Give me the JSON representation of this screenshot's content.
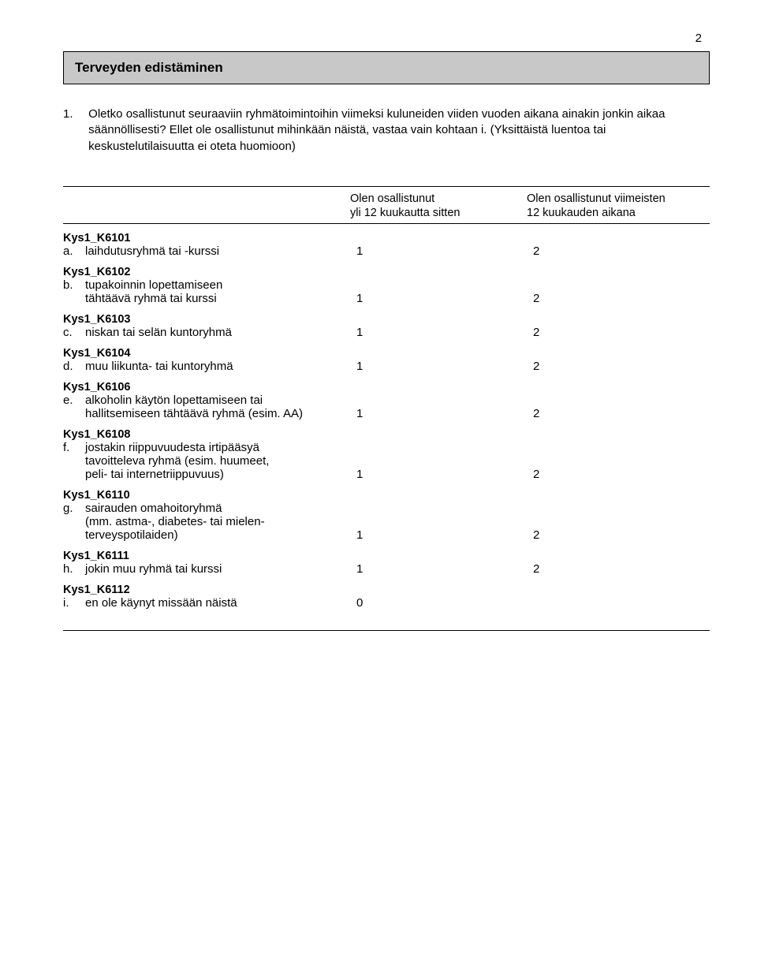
{
  "page_number": "2",
  "section_title": "Terveyden edistäminen",
  "question": {
    "number": "1.",
    "text": "Oletko osallistunut seuraaviin ryhmätoimintoihin viimeksi kuluneiden viiden vuoden aikana ainakin jonkin aikaa säännöllisesti? Ellet ole osallistunut mihinkään näistä, vastaa vain kohtaan i. (Yksittäistä luentoa tai keskustelutilaisuutta ei oteta huomioon)"
  },
  "columns": {
    "col1_line1": "Olen osallistunut",
    "col1_line2": "yli 12 kuukautta sitten",
    "col2_line1": "Olen osallistunut viimeisten",
    "col2_line2": "12 kuukauden aikana"
  },
  "items": [
    {
      "code": "Kys1_K6101",
      "letter": "a.",
      "label": "laihdutusryhmä tai -kurssi",
      "v1": "1",
      "v2": "2"
    },
    {
      "code": "Kys1_K6102",
      "letter": "b.",
      "label": "tupakoinnin lopettamiseen\ntähtäävä ryhmä tai kurssi",
      "v1": "1",
      "v2": "2"
    },
    {
      "code": "Kys1_K6103",
      "letter": "c.",
      "label": "niskan tai selän kuntoryhmä",
      "v1": "1",
      "v2": "2"
    },
    {
      "code": "Kys1_K6104",
      "letter": "d.",
      "label": "muu liikunta- tai kuntoryhmä",
      "v1": "1",
      "v2": "2"
    },
    {
      "code": "Kys1_K6106",
      "letter": "e.",
      "label": "alkoholin käytön lopettamiseen tai\nhallitsemiseen tähtäävä ryhmä (esim. AA)",
      "v1": "1",
      "v2": "2"
    },
    {
      "code": "Kys1_K6108",
      "letter": "f.",
      "label": "jostakin riippuvuudesta irtipääsyä\ntavoitteleva ryhmä (esim. huumeet,\npeli- tai internetriippuvuus)",
      "v1": "1",
      "v2": "2"
    },
    {
      "code": "Kys1_K6110",
      "letter": "g.",
      "label": "sairauden omahoitoryhmä\n(mm. astma-, diabetes- tai mielen-\nterveyspotilaiden)",
      "v1": "1",
      "v2": "2"
    },
    {
      "code": "Kys1_K6111",
      "letter": "h.",
      "label": "jokin muu ryhmä tai kurssi",
      "v1": "1",
      "v2": "2"
    },
    {
      "code": "Kys1_K6112",
      "letter": "i.",
      "label": "en ole käynyt missään näistä",
      "v1": "0",
      "v2": ""
    }
  ]
}
